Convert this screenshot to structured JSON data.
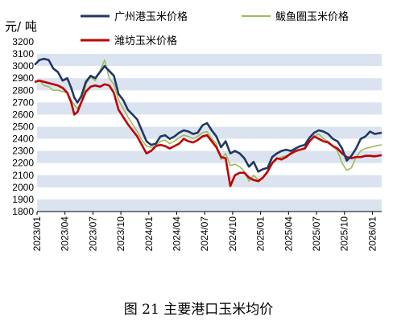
{
  "chart_data": {
    "type": "line",
    "title": "",
    "ylabel": "元/ 吨",
    "xlabel": "",
    "ylim": [
      1800,
      3200
    ],
    "yticks": [
      1800,
      1900,
      2000,
      2100,
      2200,
      2300,
      2400,
      2500,
      2600,
      2700,
      2800,
      2900,
      3000,
      3100,
      3200
    ],
    "xticks": [
      "2023/01",
      "2023/04",
      "2023/07",
      "2023/10",
      "2024/01",
      "2024/04",
      "2024/07",
      "2024/10",
      "2025/01",
      "2025/04",
      "2025/07",
      "2025/10",
      "2026/01"
    ],
    "grid": "alternating horizontal bands",
    "legend_position": "top",
    "series": [
      {
        "name": "广州港玉米价格",
        "color": "#1f3864",
        "values": [
          [
            "2023/01",
            3010
          ],
          [
            "2023/01",
            3050
          ],
          [
            "2023/02",
            3060
          ],
          [
            "2023/02",
            3050
          ],
          [
            "2023/03",
            2980
          ],
          [
            "2023/03",
            2950
          ],
          [
            "2023/04",
            2880
          ],
          [
            "2023/04",
            2900
          ],
          [
            "2023/05",
            2820
          ],
          [
            "2023/05",
            2740
          ],
          [
            "2023/05",
            2700
          ],
          [
            "2023/06",
            2750
          ],
          [
            "2023/06",
            2870
          ],
          [
            "2023/07",
            2920
          ],
          [
            "2023/07",
            2900
          ],
          [
            "2023/08",
            2950
          ],
          [
            "2023/08",
            3000
          ],
          [
            "2023/09",
            2960
          ],
          [
            "2023/09",
            2920
          ],
          [
            "2023/10",
            2770
          ],
          [
            "2023/10",
            2720
          ],
          [
            "2023/11",
            2640
          ],
          [
            "2023/11",
            2600
          ],
          [
            "2023/12",
            2560
          ],
          [
            "2023/12",
            2470
          ],
          [
            "2024/01",
            2380
          ],
          [
            "2024/01",
            2350
          ],
          [
            "2024/02",
            2360
          ],
          [
            "2024/02",
            2420
          ],
          [
            "2024/03",
            2430
          ],
          [
            "2024/03",
            2400
          ],
          [
            "2024/04",
            2420
          ],
          [
            "2024/04",
            2450
          ],
          [
            "2024/05",
            2470
          ],
          [
            "2024/05",
            2460
          ],
          [
            "2024/06",
            2440
          ],
          [
            "2024/06",
            2450
          ],
          [
            "2024/07",
            2510
          ],
          [
            "2024/07",
            2530
          ],
          [
            "2024/08",
            2470
          ],
          [
            "2024/08",
            2420
          ],
          [
            "2024/09",
            2330
          ],
          [
            "2024/09",
            2380
          ],
          [
            "2024/10",
            2280
          ],
          [
            "2024/10",
            2300
          ],
          [
            "2024/11",
            2280
          ],
          [
            "2024/11",
            2240
          ],
          [
            "2024/12",
            2170
          ],
          [
            "2024/12",
            2210
          ],
          [
            "2025/01",
            2130
          ],
          [
            "2025/01",
            2150
          ],
          [
            "2025/02",
            2160
          ],
          [
            "2025/02",
            2250
          ],
          [
            "2025/03",
            2280
          ],
          [
            "2025/03",
            2300
          ],
          [
            "2025/04",
            2310
          ],
          [
            "2025/04",
            2300
          ],
          [
            "2025/05",
            2320
          ],
          [
            "2025/05",
            2340
          ],
          [
            "2025/06",
            2350
          ],
          [
            "2025/06",
            2410
          ],
          [
            "2025/07",
            2450
          ],
          [
            "2025/07",
            2470
          ],
          [
            "2025/08",
            2460
          ],
          [
            "2025/08",
            2440
          ],
          [
            "2025/09",
            2400
          ],
          [
            "2025/09",
            2380
          ],
          [
            "2025/10",
            2320
          ],
          [
            "2025/10",
            2220
          ],
          [
            "2025/11",
            2260
          ],
          [
            "2025/11",
            2320
          ],
          [
            "2025/12",
            2400
          ],
          [
            "2025/12",
            2420
          ],
          [
            "2026/01",
            2460
          ],
          [
            "2026/01",
            2440
          ],
          [
            "2026/02",
            2450
          ]
        ]
      },
      {
        "name": "鲅鱼圈玉米价格",
        "color": "#9bbb59",
        "values": [
          [
            "2023/01",
            2860
          ],
          [
            "2023/01",
            2880
          ],
          [
            "2023/02",
            2840
          ],
          [
            "2023/02",
            2830
          ],
          [
            "2023/03",
            2800
          ],
          [
            "2023/03",
            2800
          ],
          [
            "2023/04",
            2790
          ],
          [
            "2023/04",
            2780
          ],
          [
            "2023/05",
            2720
          ],
          [
            "2023/05",
            2680
          ],
          [
            "2023/05",
            2650
          ],
          [
            "2023/06",
            2700
          ],
          [
            "2023/06",
            2850
          ],
          [
            "2023/07",
            2910
          ],
          [
            "2023/07",
            2880
          ],
          [
            "2023/08",
            2960
          ],
          [
            "2023/08",
            3050
          ],
          [
            "2023/09",
            2900
          ],
          [
            "2023/09",
            2850
          ],
          [
            "2023/10",
            2720
          ],
          [
            "2023/10",
            2650
          ],
          [
            "2023/11",
            2580
          ],
          [
            "2023/11",
            2520
          ],
          [
            "2023/12",
            2460
          ],
          [
            "2023/12",
            2390
          ],
          [
            "2024/01",
            2340
          ],
          [
            "2024/01",
            2330
          ],
          [
            "2024/02",
            2340
          ],
          [
            "2024/02",
            2380
          ],
          [
            "2024/03",
            2390
          ],
          [
            "2024/03",
            2360
          ],
          [
            "2024/04",
            2380
          ],
          [
            "2024/04",
            2410
          ],
          [
            "2024/05",
            2430
          ],
          [
            "2024/05",
            2420
          ],
          [
            "2024/06",
            2400
          ],
          [
            "2024/06",
            2420
          ],
          [
            "2024/07",
            2450
          ],
          [
            "2024/07",
            2460
          ],
          [
            "2024/08",
            2400
          ],
          [
            "2024/08",
            2360
          ],
          [
            "2024/09",
            2230
          ],
          [
            "2024/09",
            2280
          ],
          [
            "2024/10",
            2180
          ],
          [
            "2024/10",
            2190
          ],
          [
            "2024/11",
            2170
          ],
          [
            "2024/11",
            2130
          ],
          [
            "2024/12",
            2050
          ],
          [
            "2024/12",
            2100
          ],
          [
            "2025/01",
            2060
          ],
          [
            "2025/01",
            2080
          ],
          [
            "2025/02",
            2120
          ],
          [
            "2025/02",
            2200
          ],
          [
            "2025/03",
            2230
          ],
          [
            "2025/03",
            2250
          ],
          [
            "2025/04",
            2260
          ],
          [
            "2025/04",
            2270
          ],
          [
            "2025/05",
            2290
          ],
          [
            "2025/05",
            2310
          ],
          [
            "2025/06",
            2330
          ],
          [
            "2025/06",
            2380
          ],
          [
            "2025/07",
            2420
          ],
          [
            "2025/07",
            2440
          ],
          [
            "2025/08",
            2400
          ],
          [
            "2025/08",
            2380
          ],
          [
            "2025/09",
            2340
          ],
          [
            "2025/09",
            2300
          ],
          [
            "2025/10",
            2200
          ],
          [
            "2025/10",
            2140
          ],
          [
            "2025/11",
            2160
          ],
          [
            "2025/11",
            2250
          ],
          [
            "2025/12",
            2300
          ],
          [
            "2025/12",
            2320
          ],
          [
            "2026/01",
            2330
          ],
          [
            "2026/01",
            2340
          ],
          [
            "2026/02",
            2350
          ]
        ]
      },
      {
        "name": "潍坊玉米价格",
        "color": "#c00000",
        "values": [
          [
            "2023/01",
            2870
          ],
          [
            "2023/01",
            2880
          ],
          [
            "2023/02",
            2870
          ],
          [
            "2023/02",
            2860
          ],
          [
            "2023/03",
            2850
          ],
          [
            "2023/03",
            2840
          ],
          [
            "2023/04",
            2820
          ],
          [
            "2023/04",
            2780
          ],
          [
            "2023/05",
            2700
          ],
          [
            "2023/05",
            2600
          ],
          [
            "2023/05",
            2620
          ],
          [
            "2023/06",
            2700
          ],
          [
            "2023/06",
            2790
          ],
          [
            "2023/07",
            2830
          ],
          [
            "2023/07",
            2840
          ],
          [
            "2023/08",
            2830
          ],
          [
            "2023/08",
            2850
          ],
          [
            "2023/09",
            2840
          ],
          [
            "2023/09",
            2780
          ],
          [
            "2023/10",
            2640
          ],
          [
            "2023/10",
            2580
          ],
          [
            "2023/11",
            2520
          ],
          [
            "2023/11",
            2470
          ],
          [
            "2023/12",
            2420
          ],
          [
            "2023/12",
            2350
          ],
          [
            "2024/01",
            2280
          ],
          [
            "2024/01",
            2300
          ],
          [
            "2024/02",
            2340
          ],
          [
            "2024/02",
            2350
          ],
          [
            "2024/03",
            2340
          ],
          [
            "2024/03",
            2320
          ],
          [
            "2024/04",
            2340
          ],
          [
            "2024/04",
            2360
          ],
          [
            "2024/05",
            2400
          ],
          [
            "2024/05",
            2380
          ],
          [
            "2024/06",
            2370
          ],
          [
            "2024/06",
            2390
          ],
          [
            "2024/07",
            2420
          ],
          [
            "2024/07",
            2430
          ],
          [
            "2024/08",
            2380
          ],
          [
            "2024/08",
            2330
          ],
          [
            "2024/09",
            2250
          ],
          [
            "2024/09",
            2240
          ],
          [
            "2024/10",
            2010
          ],
          [
            "2024/10",
            2100
          ],
          [
            "2024/11",
            2120
          ],
          [
            "2024/11",
            2120
          ],
          [
            "2024/12",
            2080
          ],
          [
            "2024/12",
            2060
          ],
          [
            "2025/01",
            2050
          ],
          [
            "2025/01",
            2080
          ],
          [
            "2025/02",
            2130
          ],
          [
            "2025/02",
            2200
          ],
          [
            "2025/03",
            2240
          ],
          [
            "2025/03",
            2230
          ],
          [
            "2025/04",
            2250
          ],
          [
            "2025/04",
            2280
          ],
          [
            "2025/05",
            2300
          ],
          [
            "2025/05",
            2310
          ],
          [
            "2025/06",
            2320
          ],
          [
            "2025/06",
            2380
          ],
          [
            "2025/07",
            2420
          ],
          [
            "2025/07",
            2400
          ],
          [
            "2025/08",
            2380
          ],
          [
            "2025/08",
            2370
          ],
          [
            "2025/09",
            2340
          ],
          [
            "2025/09",
            2320
          ],
          [
            "2025/10",
            2280
          ],
          [
            "2025/10",
            2250
          ],
          [
            "2025/11",
            2240
          ],
          [
            "2025/11",
            2250
          ],
          [
            "2025/12",
            2250
          ],
          [
            "2025/12",
            2260
          ],
          [
            "2026/01",
            2260
          ],
          [
            "2026/01",
            2255
          ],
          [
            "2026/02",
            2265
          ]
        ]
      }
    ]
  },
  "caption": "图 21 主要港口玉米均价",
  "colors": {
    "band": "#dce3f0",
    "axis": "#000000"
  }
}
